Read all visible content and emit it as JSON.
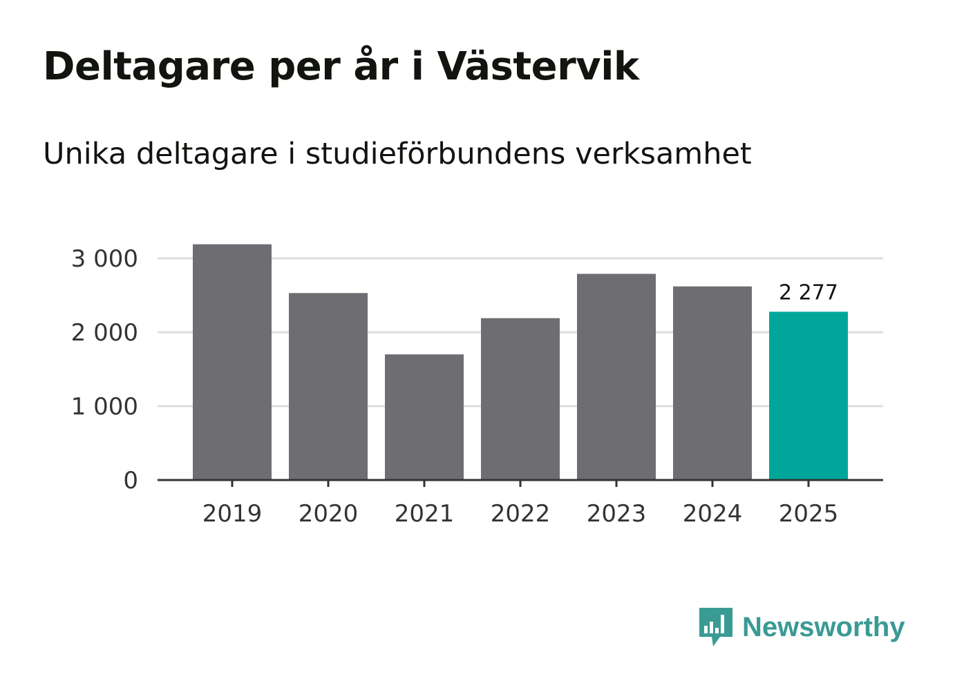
{
  "title": "Deltagare per år i Västervik",
  "subtitle": "Unika deltagare i studieförbundens verksamhet",
  "brand": {
    "name": "Newsworthy",
    "icon": "newsworthy-logo-icon",
    "color": "#3a9a94"
  },
  "colors": {
    "bar": "#6e6d72",
    "highlight": "#00a69a",
    "grid": "#dddddd",
    "axis": "#333333"
  },
  "chart_data": {
    "type": "bar",
    "categories": [
      "2019",
      "2020",
      "2021",
      "2022",
      "2023",
      "2024",
      "2025"
    ],
    "values": [
      3190,
      2530,
      1700,
      2190,
      2790,
      2620,
      2277
    ],
    "highlight_index": 6,
    "data_labels": [
      {
        "index": 6,
        "text": "2 277"
      }
    ],
    "yticks": [
      0,
      1000,
      2000,
      3000
    ],
    "ytick_labels": [
      "0",
      "1 000",
      "2 000",
      "3 000"
    ],
    "ylim": [
      0,
      3300
    ],
    "grid": true,
    "xlabel": "",
    "ylabel": ""
  }
}
